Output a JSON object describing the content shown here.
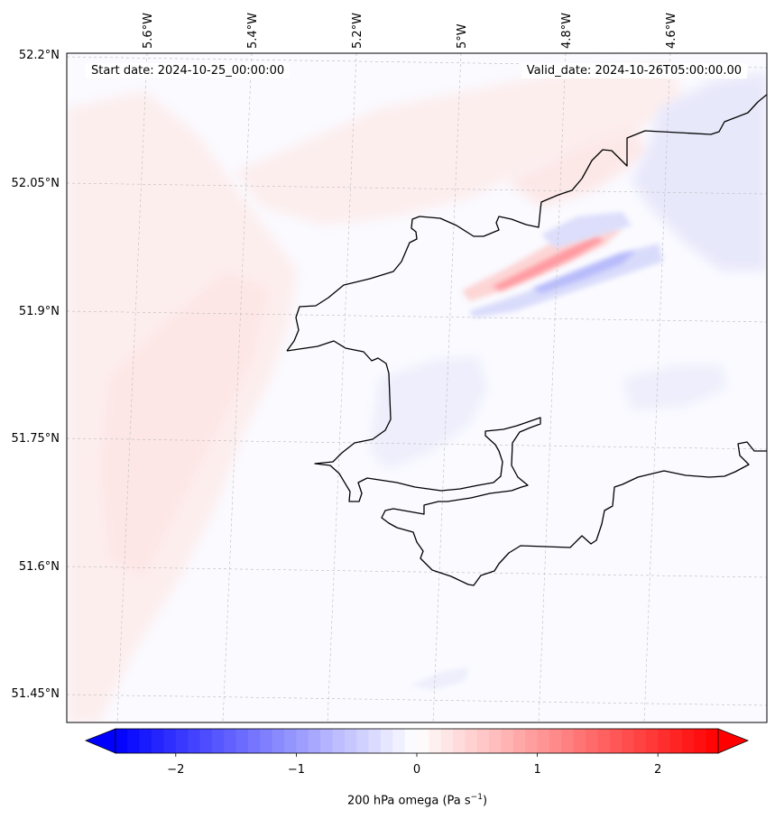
{
  "header": {
    "start_date": "Start date: 2024-10-25_00:00:00",
    "valid_date": "Valid_date: 2024-10-26T05:00:00.00"
  },
  "map": {
    "lat_ticks": [
      "52.2°N",
      "52.05°N",
      "51.9°N",
      "51.75°N",
      "51.6°N",
      "51.45°N"
    ],
    "lon_ticks": [
      "5.6°W",
      "5.4°W",
      "5.2°W",
      "5°W",
      "4.8°W",
      "4.6°W"
    ],
    "field_colors": {
      "strong_positive": "#ff9aa0",
      "weak_positive": "#fde9e9",
      "neutral": "#fafaff",
      "weak_negative": "#e6e6fb",
      "strong_negative": "#b7bbfb"
    },
    "coastline_color": "#000000"
  },
  "colorbar": {
    "ticks": [
      "−2",
      "−1",
      "0",
      "1",
      "2"
    ],
    "label_text": "200 hPa omega (Pa s",
    "label_exponent": "−1",
    "label_close": ")",
    "vmin": -2.5,
    "vmax": 2.5,
    "color_low": "#0000ff",
    "color_mid": "#ffffff",
    "color_high": "#ff0000"
  }
}
